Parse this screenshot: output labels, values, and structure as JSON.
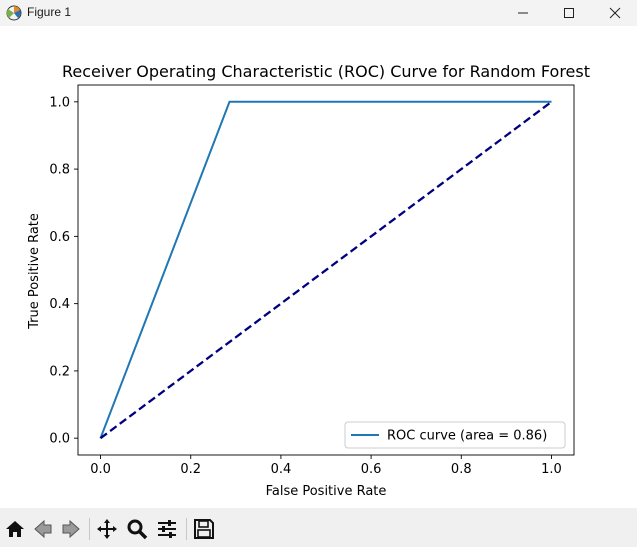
{
  "window": {
    "title": "Figure 1",
    "icon": "matplotlib-figure-icon"
  },
  "toolbar": {
    "items": [
      "home-icon",
      "back-arrow-icon",
      "forward-arrow-icon",
      "pan-icon",
      "zoom-icon",
      "configure-subplots-icon",
      "save-icon"
    ]
  },
  "chart_data": {
    "type": "line",
    "title": "Receiver Operating Characteristic (ROC) Curve for Random Forest",
    "xlabel": "False Positive Rate",
    "ylabel": "True Positive Rate",
    "xlim": [
      -0.05,
      1.05
    ],
    "ylim": [
      -0.05,
      1.05
    ],
    "xticks": [
      0.0,
      0.2,
      0.4,
      0.6,
      0.8,
      1.0
    ],
    "yticks": [
      0.0,
      0.2,
      0.4,
      0.6,
      0.8,
      1.0
    ],
    "xtick_labels": [
      "0.0",
      "0.2",
      "0.4",
      "0.6",
      "0.8",
      "1.0"
    ],
    "ytick_labels": [
      "0.0",
      "0.2",
      "0.4",
      "0.6",
      "0.8",
      "1.0"
    ],
    "grid": false,
    "legend_position": "lower right",
    "series": [
      {
        "name": "ROC curve (area = 0.86)",
        "x": [
          0.0,
          0.286,
          1.0
        ],
        "y": [
          0.0,
          1.0,
          1.0
        ],
        "color": "#1f77b4",
        "style": "solid"
      },
      {
        "x": [
          0.0,
          1.0
        ],
        "y": [
          0.0,
          1.0
        ],
        "color": "#000080",
        "style": "dashed"
      }
    ]
  }
}
